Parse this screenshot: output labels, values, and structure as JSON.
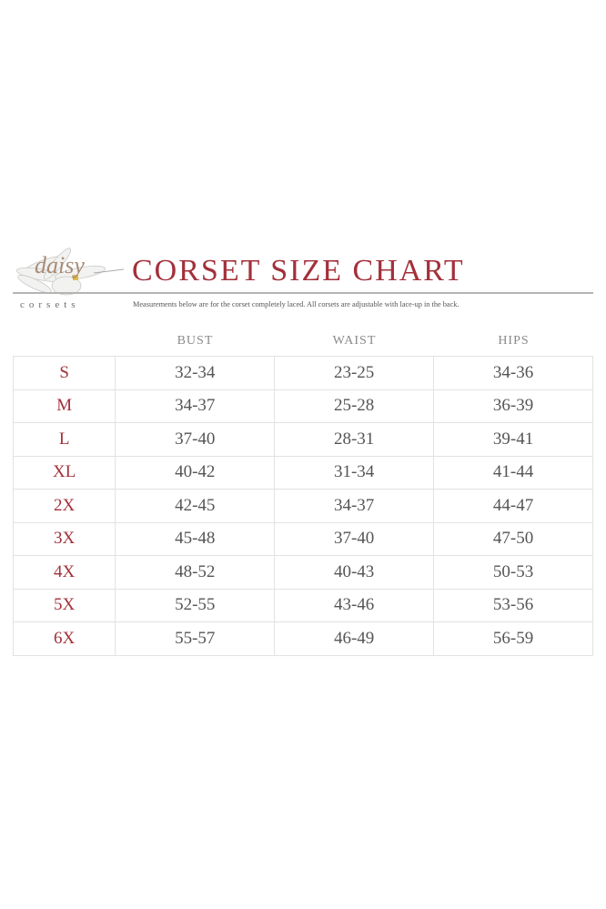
{
  "logo": {
    "script_text": "daisy",
    "word": "corsets"
  },
  "header": {
    "title": "CORSET SIZE CHART",
    "subtitle": "Measurements below are for the corset completely laced.  All corsets are adjustable with lace-up in the back."
  },
  "colors": {
    "accent": "#a3303a",
    "text": "#555555",
    "grid": "#e2e2e2"
  },
  "table": {
    "columns": [
      "BUST",
      "WAIST",
      "HIPS"
    ],
    "rows": [
      {
        "size": "S",
        "bust": "32-34",
        "waist": "23-25",
        "hips": "34-36"
      },
      {
        "size": "M",
        "bust": "34-37",
        "waist": "25-28",
        "hips": "36-39"
      },
      {
        "size": "L",
        "bust": "37-40",
        "waist": "28-31",
        "hips": "39-41"
      },
      {
        "size": "XL",
        "bust": "40-42",
        "waist": "31-34",
        "hips": "41-44"
      },
      {
        "size": "2X",
        "bust": "42-45",
        "waist": "34-37",
        "hips": "44-47"
      },
      {
        "size": "3X",
        "bust": "45-48",
        "waist": "37-40",
        "hips": "47-50"
      },
      {
        "size": "4X",
        "bust": "48-52",
        "waist": "40-43",
        "hips": "50-53"
      },
      {
        "size": "5X",
        "bust": "52-55",
        "waist": "43-46",
        "hips": "53-56"
      },
      {
        "size": "6X",
        "bust": "55-57",
        "waist": "46-49",
        "hips": "56-59"
      }
    ]
  }
}
